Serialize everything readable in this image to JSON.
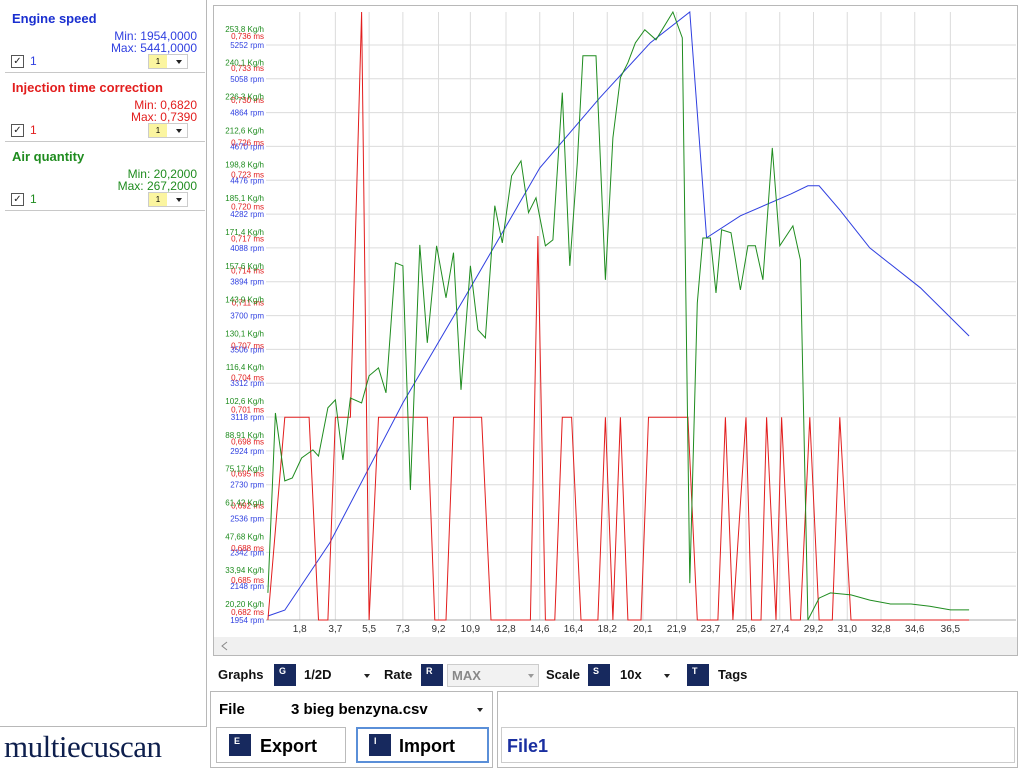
{
  "channels": [
    {
      "min": "Min: 1954,0000",
      "max": "Max: 5441,0000",
      "checkbox_label": "1",
      "dropdown": "1"
    },
    {
      "min": "Min: 0,6820",
      "max": "Max: 0,7390",
      "checkbox_label": "1",
      "dropdown": "1"
    },
    {
      "min": "Min: 20,2000",
      "max": "Max: 267,2000",
      "checkbox_label": "1",
      "dropdown": "1"
    }
  ],
  "chart_data": {
    "type": "line",
    "grid": true,
    "xlim": [
      0,
      40
    ],
    "xticks": [
      {
        "value": 1.8,
        "label": "1,8"
      },
      {
        "value": 3.7,
        "label": "3,7"
      },
      {
        "value": 5.5,
        "label": "5,5"
      },
      {
        "value": 7.3,
        "label": "7,3"
      },
      {
        "value": 9.2,
        "label": "9,2"
      },
      {
        "value": 10.9,
        "label": "10,9"
      },
      {
        "value": 12.8,
        "label": "12,8"
      },
      {
        "value": 14.6,
        "label": "14,6"
      },
      {
        "value": 16.4,
        "label": "16,4"
      },
      {
        "value": 18.2,
        "label": "18,2"
      },
      {
        "value": 20.1,
        "label": "20,1"
      },
      {
        "value": 21.9,
        "label": "21,9"
      },
      {
        "value": 23.7,
        "label": "23,7"
      },
      {
        "value": 25.6,
        "label": "25,6"
      },
      {
        "value": 27.4,
        "label": "27,4"
      },
      {
        "value": 29.2,
        "label": "29,2"
      },
      {
        "value": 31.0,
        "label": "31,0"
      },
      {
        "value": 32.8,
        "label": "32,8"
      },
      {
        "value": 34.6,
        "label": "34,6"
      },
      {
        "value": 36.5,
        "label": "36,5"
      }
    ],
    "ylim": [
      1954,
      5441
    ],
    "yticks": [
      {
        "value": 1954,
        "label": "1954 rpm"
      },
      {
        "value": 2148,
        "label": "2148 rpm"
      },
      {
        "value": 2342,
        "label": "2342 rpm"
      },
      {
        "value": 2536,
        "label": "2536 rpm"
      },
      {
        "value": 2730,
        "label": "2730 rpm"
      },
      {
        "value": 2924,
        "label": "2924 rpm"
      },
      {
        "value": 3118,
        "label": "3118 rpm"
      },
      {
        "value": 3312,
        "label": "3312 rpm"
      },
      {
        "value": 3506,
        "label": "3506 rpm"
      },
      {
        "value": 3700,
        "label": "3700 rpm"
      },
      {
        "value": 3894,
        "label": "3894 rpm"
      },
      {
        "value": 4088,
        "label": "4088 rpm"
      },
      {
        "value": 4282,
        "label": "4282 rpm"
      },
      {
        "value": 4476,
        "label": "4476 rpm"
      },
      {
        "value": 4670,
        "label": "4670 rpm"
      },
      {
        "value": 4864,
        "label": "4864 rpm"
      },
      {
        "value": 5058,
        "label": "5058 rpm"
      },
      {
        "value": 5252,
        "label": "5252 rpm"
      }
    ],
    "y2lim": [
      0.682,
      0.739
    ],
    "y2ticks": [
      {
        "value": 0.682,
        "label": "0,682 ms"
      },
      {
        "value": 0.685,
        "label": "0,685 ms"
      },
      {
        "value": 0.688,
        "label": "0,688 ms"
      },
      {
        "value": 0.692,
        "label": "0,692 ms"
      },
      {
        "value": 0.695,
        "label": "0,695 ms"
      },
      {
        "value": 0.698,
        "label": "0,698 ms"
      },
      {
        "value": 0.701,
        "label": "0,701 ms"
      },
      {
        "value": 0.704,
        "label": "0,704 ms"
      },
      {
        "value": 0.707,
        "label": "0,707 ms"
      },
      {
        "value": 0.711,
        "label": "0,711 ms"
      },
      {
        "value": 0.714,
        "label": "0,714 ms"
      },
      {
        "value": 0.717,
        "label": "0,717 ms"
      },
      {
        "value": 0.72,
        "label": "0,720 ms"
      },
      {
        "value": 0.723,
        "label": "0,723 ms"
      },
      {
        "value": 0.726,
        "label": "0,726 ms"
      },
      {
        "value": 0.73,
        "label": "0,730 ms"
      },
      {
        "value": 0.733,
        "label": "0,733 ms"
      },
      {
        "value": 0.736,
        "label": "0,736 ms"
      }
    ],
    "y3lim": [
      20.2,
      267.2
    ],
    "y3ticks": [
      {
        "value": 20.2,
        "label": "20,20 Kg/h"
      },
      {
        "value": 33.94,
        "label": "33,94 Kg/h"
      },
      {
        "value": 47.68,
        "label": "47,68 Kg/h"
      },
      {
        "value": 61.42,
        "label": "61,42 Kg/h"
      },
      {
        "value": 75.17,
        "label": "75,17 Kg/h"
      },
      {
        "value": 88.91,
        "label": "88,91 Kg/h"
      },
      {
        "value": 102.6,
        "label": "102,6 Kg/h"
      },
      {
        "value": 116.4,
        "label": "116,4 Kg/h"
      },
      {
        "value": 130.1,
        "label": "130,1 Kg/h"
      },
      {
        "value": 143.9,
        "label": "143,9 Kg/h"
      },
      {
        "value": 157.6,
        "label": "157,6 Kg/h"
      },
      {
        "value": 171.4,
        "label": "171,4 Kg/h"
      },
      {
        "value": 185.1,
        "label": "185,1 Kg/h"
      },
      {
        "value": 198.8,
        "label": "198,8 Kg/h"
      },
      {
        "value": 212.6,
        "label": "212,6 Kg/h"
      },
      {
        "value": 226.3,
        "label": "226,3 Kg/h"
      },
      {
        "value": 240.1,
        "label": "240,1 Kg/h"
      },
      {
        "value": 253.8,
        "label": "253,8 Kg/h"
      }
    ],
    "series": [
      {
        "name": "Engine speed",
        "color": "#2f3fe0",
        "axis": "y",
        "x": [
          0.1,
          1.0,
          3.4,
          7.3,
          10.9,
          14.6,
          17.8,
          20.5,
          22.6,
          23.5,
          25.3,
          28.0,
          28.9,
          29.5,
          30.6,
          32.2,
          34.9,
          37.5
        ],
        "values": [
          1977,
          2011,
          2396,
          3199,
          3859,
          4547,
          4949,
          5265,
          5441,
          4146,
          4272,
          4398,
          4444,
          4444,
          4306,
          4088,
          3859,
          3583
        ]
      },
      {
        "name": "Injection time correction",
        "color": "#e21d1d",
        "axis": "y2",
        "x": [
          0.1,
          1.0,
          2.3,
          2.8,
          3.3,
          3.7,
          4.5,
          5.1,
          5.5,
          6.0,
          8.6,
          9.0,
          9.6,
          10.0,
          11.5,
          12.0,
          14.1,
          14.5,
          14.9,
          15.4,
          15.8,
          16.3,
          16.8,
          17.7,
          18.1,
          18.5,
          18.9,
          19.3,
          20.0,
          20.4,
          22.5,
          23.0,
          24.1,
          24.5,
          24.9,
          25.6,
          25.9,
          26.4,
          26.7,
          27.2,
          27.5,
          28.0,
          28.5,
          29.0,
          29.5,
          30.2,
          30.6,
          31.2,
          37.5
        ],
        "values": [
          0.682,
          0.701,
          0.701,
          0.682,
          0.682,
          0.701,
          0.701,
          0.739,
          0.682,
          0.701,
          0.701,
          0.682,
          0.682,
          0.701,
          0.701,
          0.682,
          0.682,
          0.718,
          0.682,
          0.682,
          0.701,
          0.701,
          0.682,
          0.682,
          0.701,
          0.682,
          0.701,
          0.682,
          0.682,
          0.701,
          0.701,
          0.682,
          0.682,
          0.701,
          0.682,
          0.701,
          0.682,
          0.682,
          0.701,
          0.682,
          0.701,
          0.682,
          0.682,
          0.701,
          0.682,
          0.682,
          0.701,
          0.682,
          0.682
        ]
      },
      {
        "name": "Air quantity",
        "color": "#1f8c1f",
        "axis": "y3",
        "x": [
          0.1,
          0.5,
          1.0,
          1.4,
          1.9,
          2.5,
          2.8,
          3.3,
          3.7,
          4.1,
          4.5,
          5.1,
          5.5,
          6.0,
          6.4,
          6.9,
          7.3,
          7.7,
          8.2,
          8.6,
          9.1,
          9.6,
          10.0,
          10.4,
          10.9,
          11.3,
          11.7,
          12.2,
          12.6,
          13.1,
          13.6,
          14.0,
          14.4,
          14.9,
          15.3,
          15.8,
          16.2,
          16.6,
          16.9,
          17.6,
          18.1,
          18.5,
          18.9,
          19.3,
          19.7,
          20.2,
          20.8,
          21.7,
          22.2,
          22.6,
          23.0,
          23.3,
          23.7,
          24.0,
          24.3,
          24.8,
          25.3,
          25.7,
          26.1,
          26.5,
          27.0,
          27.4,
          28.1,
          28.5,
          28.9,
          29.5,
          30.1,
          31.2,
          32.2,
          33.3,
          34.4,
          35.4,
          36.5,
          37.5
        ],
        "values": [
          31.2,
          104.3,
          76.7,
          77.9,
          86.0,
          89.3,
          86.8,
          106.4,
          109.6,
          85.2,
          110.4,
          108.4,
          119.4,
          122.6,
          112.5,
          165.3,
          164.1,
          73.0,
          172.6,
          132.8,
          172.2,
          151.1,
          169.4,
          113.7,
          164.1,
          138.1,
          134.8,
          188.5,
          173.4,
          200.6,
          206.7,
          185.7,
          191.7,
          172.2,
          174.6,
          234.4,
          164.1,
          205.9,
          249.4,
          249.4,
          158.4,
          216.1,
          240.5,
          246.6,
          254.7,
          260.0,
          255.9,
          267.2,
          256.7,
          35.2,
          149.0,
          175.4,
          175.4,
          153.1,
          178.7,
          177.5,
          154.3,
          172.2,
          172.2,
          158.4,
          212.0,
          172.2,
          180.3,
          166.5,
          20.2,
          29.1,
          31.2,
          30.4,
          28.3,
          26.7,
          26.7,
          25.8,
          24.3,
          24.3
        ]
      }
    ]
  },
  "toolbar": {
    "graphs_label": "Graphs",
    "graphs_key": "G",
    "graphs_value": "1/2D",
    "rate_label": "Rate",
    "rate_key": "R",
    "rate_value": "MAX",
    "scale_label": "Scale",
    "scale_key": "S",
    "scale_value": "10x",
    "tags_key": "T",
    "tags_label": "Tags"
  },
  "file_panel": {
    "label": "File",
    "file": "3 bieg benzyna.csv",
    "export_key": "E",
    "export": "Export",
    "import_key": "I",
    "import": "Import"
  },
  "file_name": "File1",
  "logo": "multiecuscan"
}
